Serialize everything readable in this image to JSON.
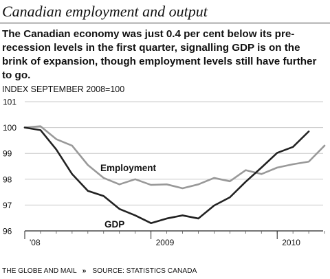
{
  "header": {
    "title": "Canadian employment and output",
    "subtitle": "The Canadian economy was just 0.4 per cent below its pre-recession levels in the first quarter, signalling GDP is on the brink of expansion, though employment levels still have further to go.",
    "index_label": "INDEX SEPTEMBER 2008=100"
  },
  "footer": {
    "publisher": "THE GLOBE AND MAIL",
    "separator": "»",
    "source": "SOURCE: STATISTICS CANADA"
  },
  "chart_data": {
    "type": "line",
    "title": "Canadian employment and output",
    "ylabel": "INDEX SEPTEMBER 2008=100",
    "ylim": [
      96,
      101
    ],
    "yticks": [
      96,
      97,
      98,
      99,
      100,
      101
    ],
    "xlim": [
      0,
      19
    ],
    "xticks": [
      {
        "value": 0,
        "label": "'08"
      },
      {
        "value": 8,
        "label": "2009"
      },
      {
        "value": 16,
        "label": "2010"
      }
    ],
    "grid": true,
    "colors": {
      "gdp": "#222222",
      "employment": "#999999",
      "grid": "#c8c8c8"
    },
    "series": [
      {
        "name": "GDP",
        "color": "#222222",
        "x": [
          0,
          1,
          2,
          3,
          4,
          5,
          6,
          7,
          8,
          9,
          10,
          11,
          12,
          13,
          14,
          15,
          16,
          17,
          18
        ],
        "values": [
          100.0,
          99.9,
          99.15,
          98.2,
          97.55,
          97.35,
          96.85,
          96.6,
          96.3,
          96.48,
          96.6,
          96.48,
          96.98,
          97.3,
          97.9,
          98.45,
          99.02,
          99.25,
          99.85
        ]
      },
      {
        "name": "Employment",
        "color": "#999999",
        "x": [
          0,
          1,
          2,
          3,
          4,
          5,
          6,
          7,
          8,
          9,
          10,
          11,
          12,
          13,
          14,
          15,
          16,
          17,
          18,
          19
        ],
        "values": [
          100.0,
          100.05,
          99.55,
          99.3,
          98.55,
          98.05,
          97.8,
          98.0,
          97.78,
          97.8,
          97.65,
          97.8,
          98.05,
          97.92,
          98.35,
          98.2,
          98.45,
          98.58,
          98.68,
          99.3
        ]
      }
    ]
  }
}
